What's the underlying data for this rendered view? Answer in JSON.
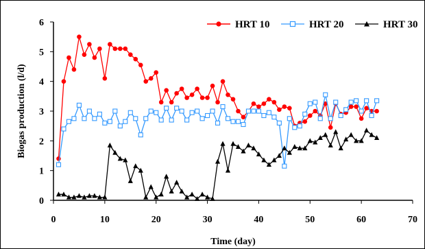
{
  "chart_data": {
    "type": "line",
    "xlabel": "Time (day)",
    "ylabel": "Biogas production (l/d)",
    "xlim": [
      0,
      70
    ],
    "ylim": [
      0,
      6
    ],
    "x_ticks": [
      "0",
      "10",
      "20",
      "30",
      "40",
      "50",
      "60",
      "70"
    ],
    "y_ticks": [
      "0",
      "1",
      "2",
      "3",
      "4",
      "5",
      "6"
    ],
    "grid": false,
    "legend_position": "top-right",
    "series": [
      {
        "name": "HRT 10",
        "color": "#ff0000",
        "marker": "filled-circle",
        "x": [
          1,
          2,
          3,
          4,
          5,
          6,
          7,
          8,
          9,
          10,
          11,
          12,
          13,
          14,
          15,
          16,
          17,
          18,
          19,
          20,
          21,
          22,
          23,
          24,
          25,
          26,
          27,
          28,
          29,
          30,
          31,
          32,
          33,
          34,
          35,
          36,
          37,
          38,
          39,
          40,
          41,
          42,
          43,
          44,
          45,
          46,
          47,
          48,
          49,
          50,
          51,
          52,
          53,
          54,
          55,
          56,
          57,
          58,
          59,
          60,
          61,
          62,
          63
        ],
        "y": [
          1.4,
          4.0,
          4.8,
          4.4,
          5.5,
          4.9,
          5.25,
          4.8,
          5.1,
          4.1,
          5.25,
          5.1,
          5.1,
          5.1,
          4.9,
          4.75,
          4.55,
          4.0,
          4.1,
          4.3,
          3.3,
          3.7,
          3.3,
          3.6,
          3.75,
          3.45,
          3.55,
          3.75,
          3.45,
          3.45,
          3.85,
          3.3,
          4.0,
          3.55,
          3.4,
          3.0,
          2.8,
          3.0,
          3.25,
          3.15,
          3.25,
          3.4,
          3.3,
          3.05,
          3.15,
          3.1,
          2.5,
          2.6,
          2.65,
          2.85,
          3.0,
          2.85,
          3.25,
          2.45,
          3.25,
          2.9,
          2.95,
          3.15,
          3.15,
          2.75,
          3.1,
          3.0,
          3.0
        ]
      },
      {
        "name": "HRT 20",
        "color": "#3399ff",
        "marker": "hollow-square",
        "x": [
          1,
          2,
          3,
          4,
          5,
          6,
          7,
          8,
          9,
          10,
          11,
          12,
          13,
          14,
          15,
          16,
          17,
          18,
          19,
          20,
          21,
          22,
          23,
          24,
          25,
          26,
          27,
          28,
          29,
          30,
          31,
          32,
          33,
          34,
          35,
          36,
          37,
          38,
          39,
          40,
          41,
          42,
          43,
          44,
          45,
          46,
          47,
          48,
          49,
          50,
          51,
          52,
          53,
          54,
          55,
          56,
          57,
          58,
          59,
          60,
          61,
          62,
          63
        ],
        "y": [
          1.2,
          2.4,
          2.65,
          2.75,
          3.2,
          2.75,
          3.0,
          2.75,
          2.9,
          2.6,
          2.65,
          3.0,
          2.5,
          2.65,
          2.95,
          2.75,
          2.2,
          2.75,
          3.0,
          2.95,
          2.7,
          3.1,
          2.7,
          3.1,
          3.0,
          2.7,
          2.95,
          3.0,
          2.75,
          2.85,
          3.0,
          2.6,
          3.15,
          2.75,
          2.65,
          2.65,
          2.55,
          3.0,
          3.0,
          3.0,
          2.85,
          2.95,
          2.8,
          2.6,
          1.15,
          2.75,
          2.45,
          2.5,
          2.9,
          3.25,
          3.3,
          2.75,
          3.55,
          2.75,
          3.3,
          2.85,
          3.05,
          3.3,
          3.35,
          3.0,
          3.35,
          2.85,
          3.35
        ]
      },
      {
        "name": "HRT 30",
        "color": "#000000",
        "marker": "filled-triangle",
        "x": [
          1,
          2,
          3,
          4,
          5,
          6,
          7,
          8,
          9,
          10,
          11,
          12,
          13,
          14,
          15,
          16,
          17,
          18,
          19,
          20,
          21,
          22,
          23,
          24,
          25,
          26,
          27,
          28,
          29,
          30,
          31,
          32,
          33,
          34,
          35,
          36,
          37,
          38,
          39,
          40,
          41,
          42,
          43,
          44,
          45,
          46,
          47,
          48,
          49,
          50,
          51,
          52,
          53,
          54,
          55,
          56,
          57,
          58,
          59,
          60,
          61,
          62,
          63
        ],
        "y": [
          0.2,
          0.2,
          0.1,
          0.1,
          0.15,
          0.1,
          0.15,
          0.15,
          0.1,
          0.1,
          1.85,
          1.6,
          1.4,
          1.35,
          0.65,
          1.15,
          1.0,
          0.1,
          0.45,
          0.1,
          0.2,
          0.8,
          0.3,
          0.6,
          0.3,
          0.1,
          0.2,
          0.05,
          0.2,
          0.1,
          0.05,
          1.3,
          1.9,
          1.0,
          1.9,
          1.8,
          1.65,
          1.85,
          1.75,
          1.55,
          1.35,
          1.2,
          1.35,
          1.5,
          1.75,
          1.6,
          1.8,
          1.75,
          1.75,
          2.0,
          1.95,
          2.1,
          2.2,
          1.85,
          2.3,
          1.75,
          2.05,
          2.2,
          2.0,
          2.0,
          2.35,
          2.2,
          2.1
        ]
      }
    ]
  }
}
